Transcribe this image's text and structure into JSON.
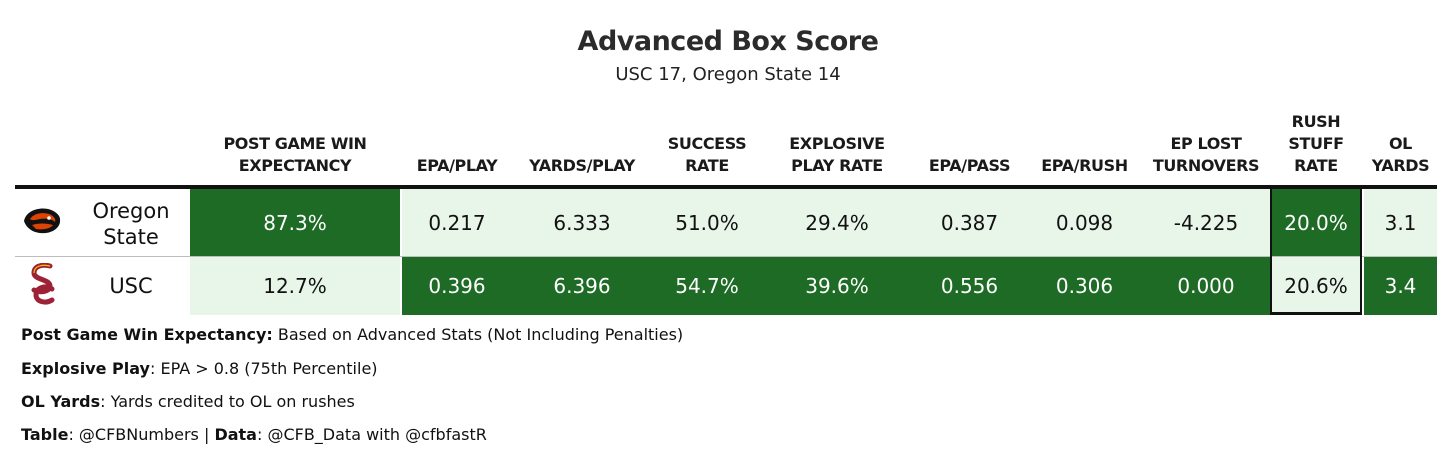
{
  "title": "Advanced Box Score",
  "subtitle": "USC 17, Oregon State 14",
  "columns": [
    [
      "POST GAME WIN",
      "EXPECTANCY"
    ],
    [
      "EPA/PLAY"
    ],
    [
      "YARDS/PLAY"
    ],
    [
      "SUCCESS",
      "RATE"
    ],
    [
      "EXPLOSIVE",
      "PLAY RATE"
    ],
    [
      "EPA/PASS"
    ],
    [
      "EPA/RUSH"
    ],
    [
      "EP LOST",
      "TURNOVERS"
    ],
    [
      "RUSH",
      "STUFF",
      "RATE"
    ],
    [
      "OL",
      "YARDS"
    ]
  ],
  "rows": [
    {
      "team_lines": [
        "Oregon",
        "State"
      ],
      "logo": "beaver-logo-icon",
      "values": [
        "87.3%",
        "0.217",
        "6.333",
        "51.0%",
        "29.4%",
        "0.387",
        "0.098",
        "-4.225",
        "20.0%",
        "3.1"
      ],
      "shade": [
        "dark",
        "light",
        "light",
        "light",
        "light",
        "light",
        "light",
        "light",
        "dark",
        "light"
      ]
    },
    {
      "team_lines": [
        "USC"
      ],
      "logo": "sc-interlock-logo-icon",
      "values": [
        "12.7%",
        "0.396",
        "6.396",
        "54.7%",
        "39.6%",
        "0.556",
        "0.306",
        "0.000",
        "20.6%",
        "3.4"
      ],
      "shade": [
        "light",
        "dark",
        "dark",
        "dark",
        "dark",
        "dark",
        "dark",
        "dark",
        "light",
        "dark"
      ]
    }
  ],
  "colors": {
    "dark": "#1e6b26",
    "light": "#e8f5e9",
    "usc_red": "#9d2235",
    "osu_orange": "#dc4405"
  },
  "footnotes": [
    {
      "label": "Post Game Win Expectancy:",
      "text": " Based on Advanced Stats (Not Including Penalties)"
    },
    {
      "label": "Explosive Play",
      "text": ": EPA > 0.8 (75th Percentile)"
    },
    {
      "label": "OL Yards",
      "text": ": Yards credited to OL on rushes"
    },
    {
      "label": "Table",
      "text": ": @CFBNumbers | ",
      "label2": "Data",
      "text2": ": @CFB_Data with @cfbfastR"
    }
  ]
}
